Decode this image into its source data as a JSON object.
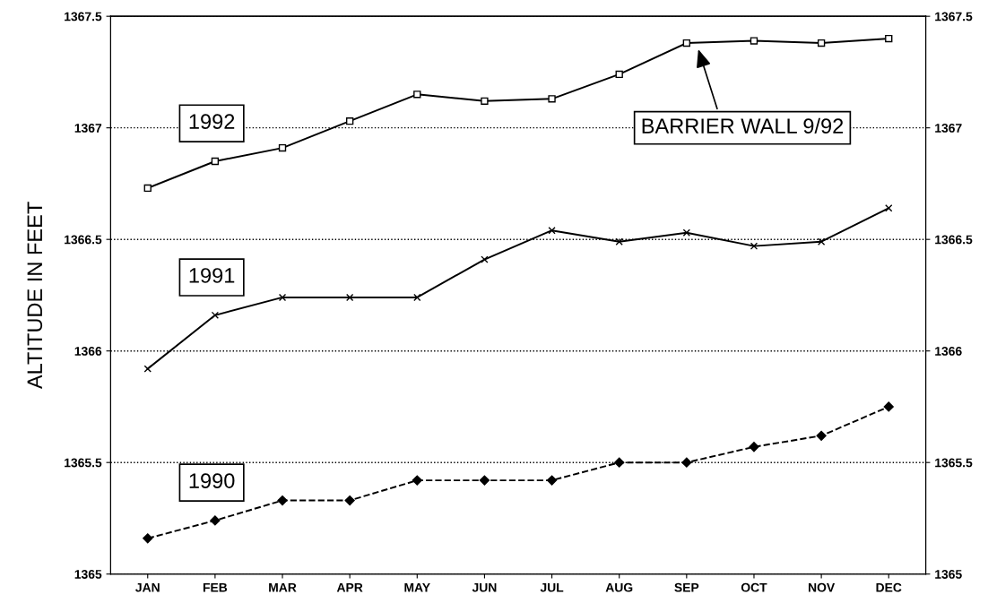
{
  "chart_data": {
    "type": "line",
    "ylabel": "ALTITUDE IN FEET",
    "categories": [
      "JAN",
      "FEB",
      "MAR",
      "APR",
      "MAY",
      "JUN",
      "JUL",
      "AUG",
      "SEP",
      "OCT",
      "NOV",
      "DEC"
    ],
    "series": [
      {
        "name": "1992",
        "color": "#000000",
        "marker": "square",
        "line_style": "solid",
        "values": [
          1366.73,
          1366.85,
          1366.91,
          1367.03,
          1367.15,
          1367.12,
          1367.13,
          1367.24,
          1367.38,
          1367.39,
          1367.38,
          1367.4
        ]
      },
      {
        "name": "1991",
        "color": "#000000",
        "marker": "cross",
        "line_style": "solid",
        "values": [
          1365.92,
          1366.16,
          1366.24,
          1366.24,
          1366.24,
          1366.41,
          1366.54,
          1366.49,
          1366.53,
          1366.47,
          1366.49,
          1366.64
        ]
      },
      {
        "name": "1990",
        "color": "#000000",
        "marker": "diamond",
        "line_style": "dashed",
        "values": [
          1365.16,
          1365.24,
          1365.33,
          1365.33,
          1365.42,
          1365.42,
          1365.42,
          1365.5,
          1365.5,
          1365.57,
          1365.62,
          1365.75
        ]
      }
    ],
    "ylim": [
      1365,
      1367.5
    ],
    "yticks": [
      1365,
      1365.5,
      1366,
      1366.5,
      1367,
      1367.5
    ],
    "y2lim": [
      1365,
      1367.5
    ],
    "y2ticks": [
      1365,
      1365.5,
      1366,
      1366.5,
      1367,
      1367.5
    ],
    "grid": "y",
    "legend": false,
    "annotations": [
      "BARRIER WALL 9/92"
    ]
  }
}
